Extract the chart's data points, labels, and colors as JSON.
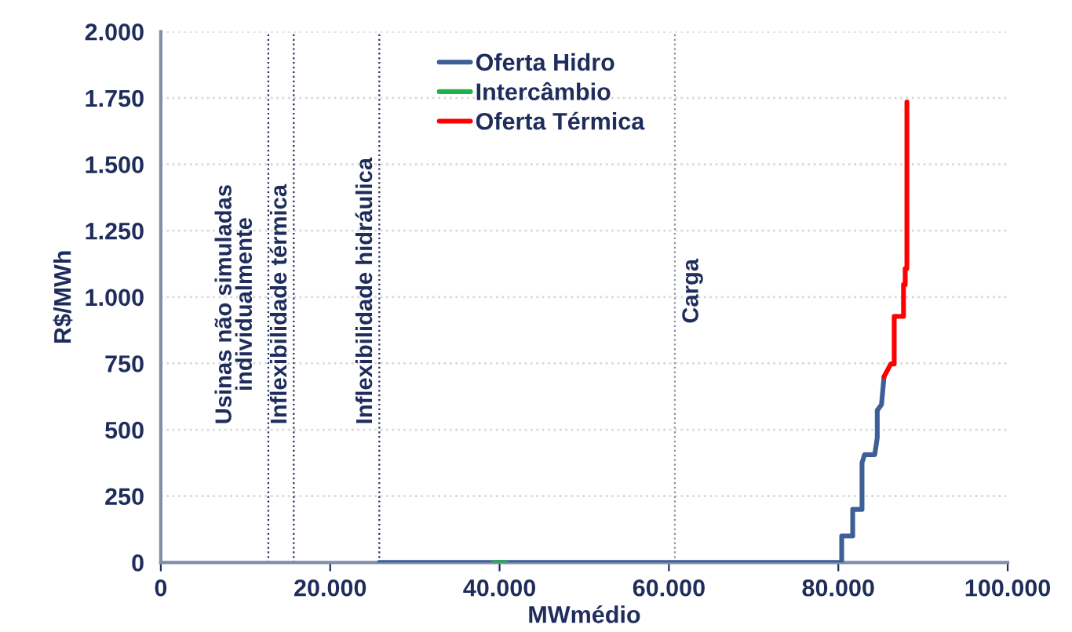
{
  "chart_data": {
    "type": "line",
    "xlabel": "MWmédio",
    "ylabel": "R$/MWh",
    "xlim": [
      0,
      100000
    ],
    "xticks": [
      {
        "value": 0,
        "label": "0"
      },
      {
        "value": 20000,
        "label": "20.000"
      },
      {
        "value": 40000,
        "label": "40.000"
      },
      {
        "value": 60000,
        "label": "60.000"
      },
      {
        "value": 80000,
        "label": "80.000"
      },
      {
        "value": 100000,
        "label": "100.000"
      }
    ],
    "ylim": [
      0,
      2000
    ],
    "yticks": [
      {
        "value": 0,
        "label": "0"
      },
      {
        "value": 250,
        "label": "250"
      },
      {
        "value": 500,
        "label": "500"
      },
      {
        "value": 750,
        "label": "750"
      },
      {
        "value": 1000,
        "label": "1.000"
      },
      {
        "value": 1250,
        "label": "1.250"
      },
      {
        "value": 1500,
        "label": "1.500"
      },
      {
        "value": 1750,
        "label": "1.750"
      },
      {
        "value": 2000,
        "label": "2.000"
      }
    ],
    "grid": "y",
    "legend": "top",
    "marker": "none",
    "line_style": "solid",
    "series": [
      {
        "name": "Oferta Hidro",
        "color": "#3b5f96",
        "x": [
          25800,
          80400,
          80400,
          81700,
          81700,
          82800,
          82800,
          83100,
          84300,
          84600,
          84600,
          85100,
          85400
        ],
        "values": [
          0,
          0,
          100,
          100,
          200,
          200,
          376,
          406,
          406,
          470,
          573,
          595,
          700
        ]
      },
      {
        "name": "Intercâmbio",
        "color": "#1fb04a",
        "x": [
          39300,
          40700
        ],
        "values": [
          0,
          0
        ]
      },
      {
        "name": "Oferta Térmica",
        "color": "#ff0000",
        "x": [
          85400,
          86200,
          86600,
          86600,
          87700,
          87700,
          87900,
          87900,
          88100,
          88100
        ],
        "values": [
          700,
          748,
          748,
          927,
          927,
          1047,
          1047,
          1107,
          1107,
          1735
        ]
      }
    ],
    "ref_lines": [
      {
        "axis": "x",
        "value": 12700,
        "label": "Usinas não simuladas\nindividualmente",
        "color": "#1f2d5c",
        "line_style": "dotted"
      },
      {
        "axis": "x",
        "value": 15700,
        "label": "Inflexibilidade térmica",
        "color": "#1f2d5c",
        "line_style": "dotted"
      },
      {
        "axis": "x",
        "value": 25800,
        "label": "Inflexibilidade hidráulica",
        "color": "#1f2d5c",
        "line_style": "dotted"
      },
      {
        "axis": "x",
        "value": 60700,
        "label": "Carga",
        "color": "#8a8f9c",
        "line_style": "dotted"
      }
    ]
  }
}
